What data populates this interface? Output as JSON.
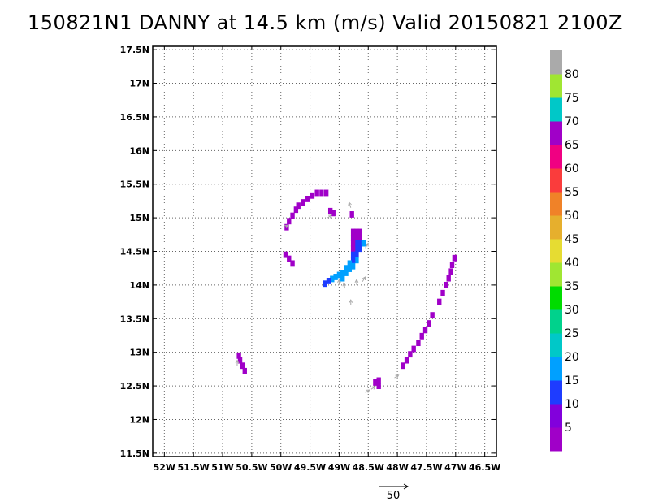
{
  "title": "150821N1 DANNY at 14.5 km (m/s) Valid 20150821 2100Z",
  "chart_data": {
    "type": "heatmap",
    "title": "150821N1 DANNY at 14.5 km (m/s) Valid 20150821 2100Z",
    "xlim": [
      -52.2,
      -46.3
    ],
    "ylim": [
      11.45,
      17.55
    ],
    "x_ticks": [
      -52,
      -51.5,
      -51,
      -50.5,
      -50,
      -49.5,
      -49,
      -48.5,
      -48,
      -47.5,
      -47,
      -46.5
    ],
    "x_tick_labels": [
      "52W",
      "51.5W",
      "51W",
      "50.5W",
      "50W",
      "49.5W",
      "49W",
      "48.5W",
      "48W",
      "47.5W",
      "47W",
      "46.5W"
    ],
    "y_ticks": [
      11.5,
      12,
      12.5,
      13,
      13.5,
      14,
      14.5,
      15,
      15.5,
      16,
      16.5,
      17,
      17.5
    ],
    "y_tick_labels": [
      "11.5N",
      "12N",
      "12.5N",
      "13N",
      "13.5N",
      "14N",
      "14.5N",
      "15N",
      "15.5N",
      "16N",
      "16.5N",
      "17N",
      "17.5N"
    ],
    "grid": true,
    "colorbar": {
      "levels": [
        0,
        5,
        10,
        15,
        20,
        25,
        30,
        35,
        40,
        45,
        50,
        55,
        60,
        65,
        70,
        75,
        80
      ],
      "labels": [
        "5",
        "10",
        "15",
        "20",
        "25",
        "30",
        "35",
        "40",
        "45",
        "50",
        "55",
        "60",
        "65",
        "70",
        "75",
        "80"
      ],
      "colors": [
        "#a000c8",
        "#8200dc",
        "#1e3cff",
        "#00a0ff",
        "#00c8c8",
        "#00d28c",
        "#00dc00",
        "#a0e632",
        "#e6dc32",
        "#e6af2d",
        "#f08228",
        "#fa3c3c",
        "#f00082",
        "#a000c8",
        "#00c8c8",
        "#a0e632",
        "#aaaaaa"
      ]
    },
    "reference_vector": {
      "value": 50,
      "label": "50"
    },
    "cells": [
      {
        "x": -49.22,
        "y": 15.37,
        "v": 3
      },
      {
        "x": -49.3,
        "y": 15.37,
        "v": 3
      },
      {
        "x": -49.38,
        "y": 15.37,
        "v": 3
      },
      {
        "x": -49.46,
        "y": 15.33,
        "v": 3
      },
      {
        "x": -49.54,
        "y": 15.28,
        "v": 3
      },
      {
        "x": -49.62,
        "y": 15.23,
        "v": 3
      },
      {
        "x": -49.7,
        "y": 15.18,
        "v": 3
      },
      {
        "x": -49.74,
        "y": 15.12,
        "v": 3
      },
      {
        "x": -49.8,
        "y": 15.03,
        "v": 3
      },
      {
        "x": -49.86,
        "y": 14.95,
        "v": 3
      },
      {
        "x": -49.9,
        "y": 14.86,
        "v": 3
      },
      {
        "x": -49.15,
        "y": 15.1,
        "v": 3
      },
      {
        "x": -49.1,
        "y": 15.07,
        "v": 3
      },
      {
        "x": -48.78,
        "y": 15.05,
        "v": 3
      },
      {
        "x": -49.92,
        "y": 14.45,
        "v": 3
      },
      {
        "x": -49.86,
        "y": 14.39,
        "v": 3
      },
      {
        "x": -49.8,
        "y": 14.32,
        "v": 3
      },
      {
        "x": -48.64,
        "y": 14.79,
        "v": 3
      },
      {
        "x": -48.7,
        "y": 14.79,
        "v": 3
      },
      {
        "x": -48.76,
        "y": 14.79,
        "v": 3
      },
      {
        "x": -48.64,
        "y": 14.7,
        "v": 3
      },
      {
        "x": -48.7,
        "y": 14.7,
        "v": 3
      },
      {
        "x": -48.76,
        "y": 14.7,
        "v": 3
      },
      {
        "x": -48.64,
        "y": 14.62,
        "v": 10
      },
      {
        "x": -48.7,
        "y": 14.62,
        "v": 10
      },
      {
        "x": -48.76,
        "y": 14.62,
        "v": 3
      },
      {
        "x": -48.58,
        "y": 14.62,
        "v": 15
      },
      {
        "x": -48.64,
        "y": 14.54,
        "v": 10
      },
      {
        "x": -48.7,
        "y": 14.54,
        "v": 10
      },
      {
        "x": -48.76,
        "y": 14.54,
        "v": 3
      },
      {
        "x": -48.7,
        "y": 14.45,
        "v": 10
      },
      {
        "x": -48.76,
        "y": 14.45,
        "v": 10
      },
      {
        "x": -48.7,
        "y": 14.37,
        "v": 15
      },
      {
        "x": -48.76,
        "y": 14.37,
        "v": 10
      },
      {
        "x": -48.82,
        "y": 14.32,
        "v": 15
      },
      {
        "x": -48.76,
        "y": 14.28,
        "v": 15
      },
      {
        "x": -48.88,
        "y": 14.25,
        "v": 15
      },
      {
        "x": -48.82,
        "y": 14.24,
        "v": 15
      },
      {
        "x": -48.94,
        "y": 14.18,
        "v": 15
      },
      {
        "x": -49.0,
        "y": 14.15,
        "v": 15
      },
      {
        "x": -49.06,
        "y": 14.12,
        "v": 15
      },
      {
        "x": -49.12,
        "y": 14.09,
        "v": 15
      },
      {
        "x": -49.18,
        "y": 14.06,
        "v": 10
      },
      {
        "x": -49.24,
        "y": 14.02,
        "v": 10
      },
      {
        "x": -48.88,
        "y": 14.18,
        "v": 15
      },
      {
        "x": -48.94,
        "y": 14.1,
        "v": 15
      },
      {
        "x": -47.02,
        "y": 14.4,
        "v": 3
      },
      {
        "x": -47.06,
        "y": 14.3,
        "v": 3
      },
      {
        "x": -47.08,
        "y": 14.2,
        "v": 3
      },
      {
        "x": -47.12,
        "y": 14.1,
        "v": 3
      },
      {
        "x": -47.16,
        "y": 14.0,
        "v": 3
      },
      {
        "x": -47.22,
        "y": 13.88,
        "v": 3
      },
      {
        "x": -47.28,
        "y": 13.75,
        "v": 3
      },
      {
        "x": -47.4,
        "y": 13.55,
        "v": 3
      },
      {
        "x": -47.46,
        "y": 13.43,
        "v": 3
      },
      {
        "x": -47.52,
        "y": 13.33,
        "v": 3
      },
      {
        "x": -47.58,
        "y": 13.24,
        "v": 3
      },
      {
        "x": -47.64,
        "y": 13.14,
        "v": 3
      },
      {
        "x": -47.72,
        "y": 13.05,
        "v": 3
      },
      {
        "x": -47.78,
        "y": 12.97,
        "v": 3
      },
      {
        "x": -47.84,
        "y": 12.88,
        "v": 3
      },
      {
        "x": -47.9,
        "y": 12.8,
        "v": 3
      },
      {
        "x": -48.32,
        "y": 12.58,
        "v": 3
      },
      {
        "x": -48.38,
        "y": 12.55,
        "v": 3
      },
      {
        "x": -48.32,
        "y": 12.5,
        "v": 3
      },
      {
        "x": -50.72,
        "y": 12.95,
        "v": 3
      },
      {
        "x": -50.7,
        "y": 12.88,
        "v": 3
      },
      {
        "x": -50.66,
        "y": 12.8,
        "v": 3
      },
      {
        "x": -50.62,
        "y": 12.72,
        "v": 3
      }
    ],
    "vectors": [
      {
        "x": -48.8,
        "y": 15.15,
        "dx": -0.03,
        "dy": 0.08
      },
      {
        "x": -48.55,
        "y": 14.55,
        "dx": 0.05,
        "dy": 0.07
      },
      {
        "x": -48.9,
        "y": 13.95,
        "dx": -0.02,
        "dy": 0.08
      },
      {
        "x": -49.0,
        "y": 14.0,
        "dx": 0.0,
        "dy": 0.08
      },
      {
        "x": -48.7,
        "y": 14.0,
        "dx": 0.0,
        "dy": 0.08
      },
      {
        "x": -48.6,
        "y": 14.05,
        "dx": 0.05,
        "dy": 0.07
      },
      {
        "x": -48.8,
        "y": 13.7,
        "dx": 0.0,
        "dy": 0.08
      },
      {
        "x": -48.55,
        "y": 12.4,
        "dx": 0.07,
        "dy": 0.04
      },
      {
        "x": -48.45,
        "y": 12.45,
        "dx": 0.07,
        "dy": 0.04
      },
      {
        "x": -48.05,
        "y": 12.62,
        "dx": 0.07,
        "dy": 0.04
      },
      {
        "x": -49.95,
        "y": 14.85,
        "dx": 0.07,
        "dy": 0.04
      },
      {
        "x": -49.2,
        "y": 15.0,
        "dx": 0.07,
        "dy": 0.04
      },
      {
        "x": -50.75,
        "y": 12.8,
        "dx": 0.0,
        "dy": 0.08
      }
    ]
  }
}
